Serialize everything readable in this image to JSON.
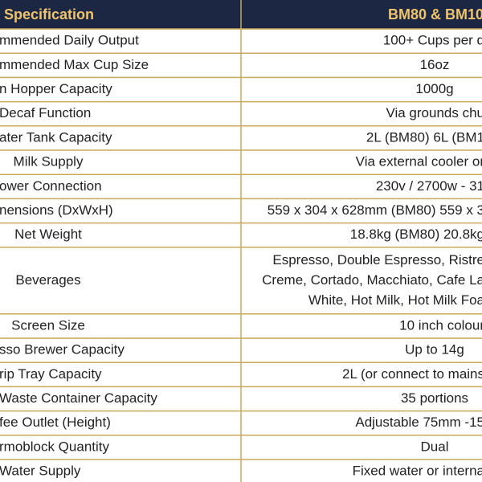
{
  "header": {
    "left": "Specification",
    "right": "BM80 & BM10"
  },
  "rows": [
    {
      "label": "mmended Daily Output",
      "value": [
        "100+ Cups per d"
      ]
    },
    {
      "label": "mmended Max Cup Size",
      "value": [
        "16oz"
      ]
    },
    {
      "label": "n Hopper Capacity",
      "value": [
        "1000g"
      ]
    },
    {
      "label": "Decaf Function",
      "value": [
        "Via grounds chu"
      ]
    },
    {
      "label": "ater Tank Capacity",
      "value": [
        "2L (BM80) 6L (BM1"
      ]
    },
    {
      "label": "Milk Supply",
      "value": [
        "Via external cooler or"
      ]
    },
    {
      "label": "ower Connection",
      "value": [
        "230v / 2700w - 31"
      ]
    },
    {
      "label": "nensions (DxWxH)",
      "value": [
        "559 x 304 x 628mm (BM80) 559 x 3"
      ]
    },
    {
      "label": "Net Weight",
      "value": [
        "18.8kg (BM80) 20.8kg"
      ]
    },
    {
      "label": "Beverages",
      "value": [
        "Espresso, Double Espresso, Ristre",
        "Creme, Cortado, Macchiato, Cafe La",
        "White, Hot Milk, Hot Milk Foa"
      ]
    },
    {
      "label": "Screen Size",
      "value": [
        "10 inch colour"
      ]
    },
    {
      "label": "sso Brewer Capacity",
      "value": [
        "Up to 14g"
      ]
    },
    {
      "label": "rip Tray Capacity",
      "value": [
        "2L (or connect to mains"
      ]
    },
    {
      "label": "Waste Container Capacity",
      "value": [
        "35 portions"
      ]
    },
    {
      "label": "fee Outlet (Height)",
      "value": [
        "Adjustable 75mm -15"
      ]
    },
    {
      "label": "rmoblock Quantity",
      "value": [
        "Dual"
      ]
    },
    {
      "label": "Water Supply",
      "value": [
        "Fixed water or interna"
      ]
    }
  ]
}
